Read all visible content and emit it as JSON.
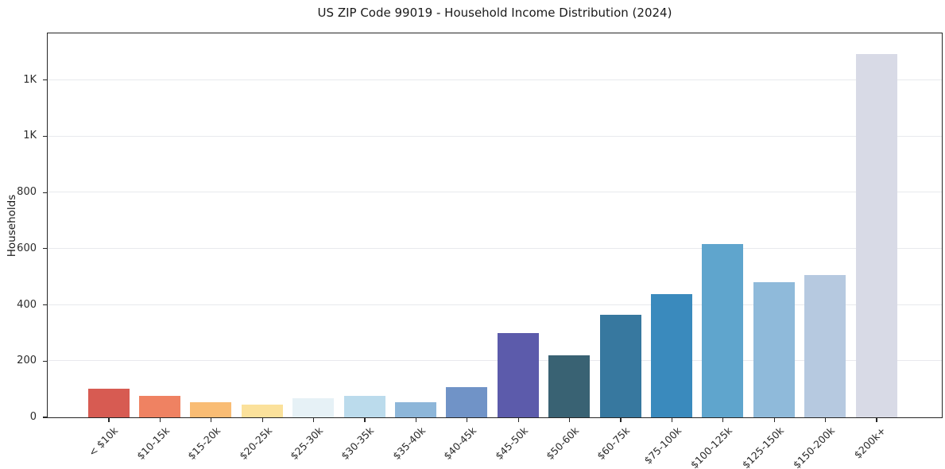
{
  "chart_data": {
    "type": "bar",
    "title": "US ZIP Code 99019 - Household Income Distribution (2024)",
    "xlabel": "",
    "ylabel": "Households",
    "categories": [
      "< $10k",
      "$10-15k",
      "$15-20k",
      "$20-25k",
      "$25-30k",
      "$30-35k",
      "$35-40k",
      "$40-45k",
      "$45-50k",
      "$50-60k",
      "$60-75k",
      "$75-100k",
      "$100-125k",
      "$125-150k",
      "$150-200k",
      "$200k+"
    ],
    "values": [
      102,
      76,
      52,
      45,
      67,
      76,
      54,
      106,
      300,
      220,
      363,
      438,
      617,
      481,
      506,
      1293
    ],
    "bar_colors": [
      "#d75b52",
      "#ef8262",
      "#f9bc74",
      "#fbe19b",
      "#e6f1f6",
      "#bbdbec",
      "#8db6d9",
      "#7093c7",
      "#5c5bab",
      "#396273",
      "#37789f",
      "#3a8abd",
      "#5fa5cd",
      "#8fbada",
      "#b6c9e0",
      "#d8dae6"
    ],
    "yticks": [
      {
        "value": 0,
        "label": "0"
      },
      {
        "value": 200,
        "label": "200"
      },
      {
        "value": 400,
        "label": "400"
      },
      {
        "value": 600,
        "label": "600"
      },
      {
        "value": 800,
        "label": "800"
      },
      {
        "value": 1000,
        "label": "1K"
      },
      {
        "value": 1200,
        "label": "1K"
      }
    ],
    "ylim": [
      0,
      1366
    ],
    "grid": true,
    "legend": false,
    "colors": {
      "background": "#ffffff",
      "spine": "#262626",
      "grid": "#e8e9ed",
      "tick_text": "#2b2b2b",
      "title_text": "#1a1a1a"
    }
  }
}
